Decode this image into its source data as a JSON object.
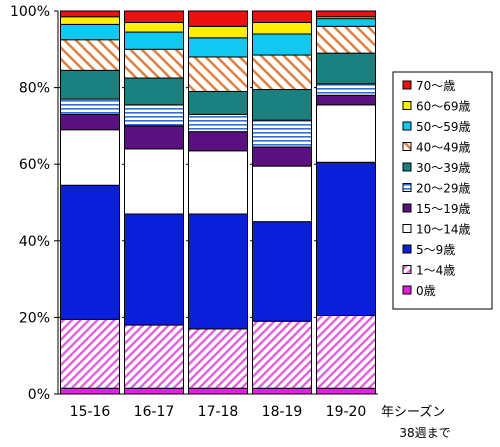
{
  "chart_data": {
    "type": "bar",
    "stacked": true,
    "categories": [
      "15-16",
      "16-17",
      "17-18",
      "18-19",
      "19-20"
    ],
    "x_suffix": "年シーズン",
    "x_note": "38週まで",
    "ylim": [
      0,
      100
    ],
    "y_ticks": [
      "0%",
      "20%",
      "40%",
      "60%",
      "80%",
      "100%"
    ],
    "grid": "y-dashed",
    "legend_position": "right",
    "series": [
      {
        "name": "0歳",
        "color": "#e020e0",
        "pattern": "solid",
        "values": [
          1.5,
          1.5,
          1.5,
          1.5,
          1.5
        ]
      },
      {
        "name": "1～4歳",
        "color": "#e060e0",
        "pattern": "hatch-diagonal",
        "values": [
          18,
          16.5,
          15.5,
          17.5,
          19
        ]
      },
      {
        "name": "5～9歳",
        "color": "#0a1fdc",
        "pattern": "solid",
        "values": [
          35,
          29,
          30,
          26,
          40
        ]
      },
      {
        "name": "10～14歳",
        "color": "#ffffff",
        "pattern": "solid",
        "values": [
          14.5,
          17,
          16.5,
          14.5,
          15
        ]
      },
      {
        "name": "15～19歳",
        "color": "#5a1080",
        "pattern": "solid",
        "values": [
          4,
          6,
          5,
          5,
          2.5
        ]
      },
      {
        "name": "20～29歳",
        "color": "#3070d0",
        "pattern": "hatch-horizontal",
        "values": [
          4,
          5.5,
          4.5,
          7,
          3
        ]
      },
      {
        "name": "30～39歳",
        "color": "#1a8080",
        "pattern": "solid",
        "values": [
          7.5,
          7,
          6,
          8,
          8
        ]
      },
      {
        "name": "40～49歳",
        "color": "#e08040",
        "pattern": "hatch-diagonal-wide",
        "values": [
          8,
          7.5,
          9,
          9,
          7
        ]
      },
      {
        "name": "50～59歳",
        "color": "#10c8f0",
        "pattern": "solid",
        "values": [
          4,
          4.5,
          5,
          5.5,
          2
        ]
      },
      {
        "name": "60～69歳",
        "color": "#ffee00",
        "pattern": "solid",
        "values": [
          2,
          2.5,
          3,
          3,
          0.5
        ]
      },
      {
        "name": "70～歳",
        "color": "#ee1010",
        "pattern": "solid",
        "values": [
          1.5,
          3,
          4,
          3,
          1.5
        ]
      }
    ]
  }
}
